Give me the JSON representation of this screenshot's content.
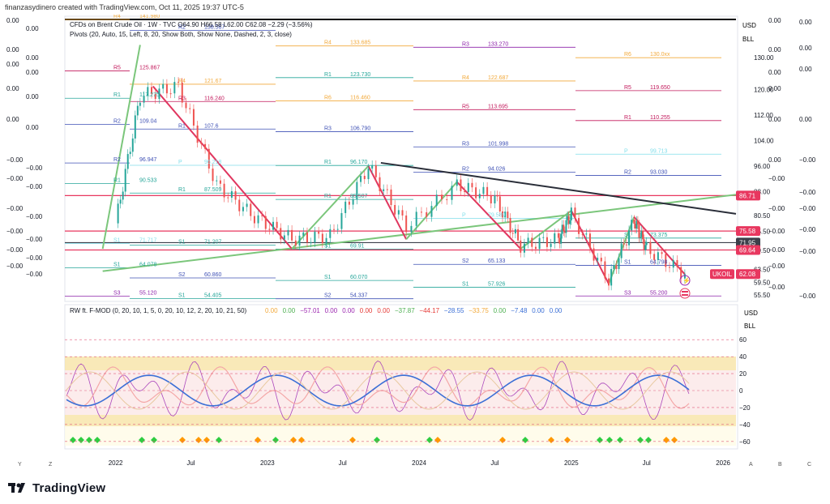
{
  "header": {
    "creator_text": "finanzasydinero created with TradingView.com, Oct 11, 2025 19:37 UTC-5"
  },
  "main_legend": {
    "line1": "CFDs on Brent Crude Oil · 1W · TVC  O64.90  H66.58  L62.00  C62.08  −2.29 (−3.56%)",
    "line2": "Pivots (20, Auto, 15, Left, 8, 20, Show Both, Show None, Dashed, 2, 3, close)"
  },
  "osc_legend": {
    "title": "RW ft. F-MOD (0, 20, 10, 1, 5, 0, 20, 10, 12, 2, 20, 10, 21, 50)",
    "values": [
      "0.00",
      "0.00",
      "−57.01",
      "0.00",
      "0.00",
      "0.00",
      "0.00",
      "−37.87",
      "−44.17",
      "−28.55",
      "−33.75",
      "0.00",
      "−7.48",
      "0.00",
      "0.00"
    ]
  },
  "price_axis": {
    "currency": "USD",
    "unit": "BLL",
    "ticks": [
      "130.00",
      "120.00",
      "112.00",
      "104.00",
      "96.00",
      "88.00",
      "80.50",
      "75.50",
      "69.50",
      "63.50",
      "59.50",
      "55.50"
    ]
  },
  "osc_axis": {
    "currency": "USD",
    "unit": "BLL",
    "ticks": [
      "60",
      "40",
      "20",
      "0",
      "−20",
      "−40",
      "−60"
    ]
  },
  "price_badges": [
    {
      "label": "86.71",
      "color": "#e8375f"
    },
    {
      "label": "75.58",
      "color": "#e8375f"
    },
    {
      "label": "71.95",
      "color": "#3c3f4a"
    },
    {
      "label": "69.64",
      "color": "#e8375f"
    },
    {
      "label": "UKOIL",
      "color": "#e8375f"
    },
    {
      "label": "62.08",
      "color": "#e8375f"
    }
  ],
  "left_scale_a": [
    "0.00",
    "0.00",
    "0.00",
    "0.00",
    "0.00",
    "−0.00",
    "−0.00",
    "−0.00",
    "−0.00",
    "−0.00",
    "−0.00"
  ],
  "left_scale_b": [
    "0.00",
    "0.00",
    "0.00",
    "0.00",
    "0.00",
    "−0.00",
    "−0.00",
    "−0.00",
    "−0.00",
    "−0.00",
    "−0.00"
  ],
  "right_scale": [
    "0.00",
    "0.00",
    "0.00",
    "0.00",
    "0.00",
    "0.00",
    "−0.00",
    "−0.00",
    "−0.00",
    "−0.00",
    "−0.00",
    "−0.00"
  ],
  "right_scale2": [
    "0.00",
    "0.00",
    "0.00",
    "0.00",
    "−0.00",
    "−0.00",
    "−0.00",
    "−0.00",
    "−0.00",
    "−0.00"
  ],
  "pivot_labels": [
    {
      "t": "R4",
      "v": "141.980",
      "c": "#f2a93b"
    },
    {
      "t": "R2",
      "v": "138.567",
      "c": "#3f51b5"
    },
    {
      "t": "R4",
      "v": "133.685",
      "c": "#f2a93b"
    },
    {
      "t": "R3",
      "v": "133.270",
      "c": "#8e24aa"
    },
    {
      "t": "R6",
      "v": "130.0xx",
      "c": "#f2a93b"
    },
    {
      "t": "R5",
      "v": "125.867",
      "c": "#c2185b"
    },
    {
      "t": "R4",
      "v": "121.67",
      "c": "#f2a93b"
    },
    {
      "t": "R1",
      "v": "123.730",
      "c": "#26a69a"
    },
    {
      "t": "R4",
      "v": "122.687",
      "c": "#f2a93b"
    },
    {
      "t": "R5",
      "v": "119.650",
      "c": "#c2185b"
    },
    {
      "t": "R1",
      "v": "117.275",
      "c": "#26a69a"
    },
    {
      "t": "R3",
      "v": "116.240",
      "c": "#c2185b"
    },
    {
      "t": "R6",
      "v": "116.460",
      "c": "#f2a93b"
    },
    {
      "t": "R5",
      "v": "113.695",
      "c": "#c2185b"
    },
    {
      "t": "R1",
      "v": "110.255",
      "c": "#c2185b"
    },
    {
      "t": "R2",
      "v": "109.04",
      "c": "#3f51b5"
    },
    {
      "t": "R1",
      "v": "107.6",
      "c": "#3f51b5"
    },
    {
      "t": "R3",
      "v": "106.790",
      "c": "#3f51b5"
    },
    {
      "t": "R3",
      "v": "101.998",
      "c": "#3f51b5"
    },
    {
      "t": "P",
      "v": "99.713",
      "c": "#80deea"
    },
    {
      "t": "R2",
      "v": "96.947",
      "c": "#3f51b5"
    },
    {
      "t": "P",
      "v": "96.218",
      "c": "#80deea"
    },
    {
      "t": "R1",
      "v": "96.170",
      "c": "#26a69a"
    },
    {
      "t": "R2",
      "v": "94.026",
      "c": "#3f51b5"
    },
    {
      "t": "R2",
      "v": "93.030",
      "c": "#3f51b5"
    },
    {
      "t": "R1",
      "v": "90.533",
      "c": "#26a69a"
    },
    {
      "t": "R1",
      "v": "87.509",
      "c": "#26a69a"
    },
    {
      "t": "R1",
      "v": "85.507",
      "c": "#26a69a"
    },
    {
      "t": "P",
      "v": "79.589",
      "c": "#80deea"
    },
    {
      "t": "S1",
      "v": "73.375",
      "c": "#26a69a"
    },
    {
      "t": "S1",
      "v": "71.717",
      "c": "#80deea"
    },
    {
      "t": "S1",
      "v": "71.207",
      "c": "#26a69a"
    },
    {
      "t": "S1",
      "v": "69.91",
      "c": "#26a69a"
    },
    {
      "t": "S2",
      "v": "65.133",
      "c": "#3f51b5"
    },
    {
      "t": "S1",
      "v": "64.798",
      "c": "#3f51b5"
    },
    {
      "t": "S1",
      "v": "64.078",
      "c": "#26a69a"
    },
    {
      "t": "S2",
      "v": "60.860",
      "c": "#3f51b5"
    },
    {
      "t": "S1",
      "v": "60.070",
      "c": "#26a69a"
    },
    {
      "t": "S1",
      "v": "57.926",
      "c": "#26a69a"
    },
    {
      "t": "S3",
      "v": "55.200",
      "c": "#8e24aa"
    },
    {
      "t": "S3",
      "v": "55.120",
      "c": "#8e24aa"
    },
    {
      "t": "S1",
      "v": "54.405",
      "c": "#26a69a"
    },
    {
      "t": "S2",
      "v": "54.337",
      "c": "#3f51b5"
    }
  ],
  "time_axis": [
    "2022",
    "Jul",
    "2023",
    "Jul",
    "2024",
    "Jul",
    "2025",
    "Jul",
    "2026"
  ],
  "corner_buttons": {
    "left_y": "Y",
    "left_z": "Z",
    "right_a": "A",
    "right_b": "B",
    "right_c": "C"
  },
  "footer": {
    "brand": "TradingView"
  },
  "chart_data": {
    "type": "line",
    "title": "CFDs on Brent Crude Oil · 1W · TVC",
    "symbol": "UKOIL",
    "ohlc_last": {
      "open": 64.9,
      "high": 66.58,
      "low": 62.0,
      "close": 62.08,
      "change": -2.29,
      "change_pct": -3.56
    },
    "x": [
      "2022-01",
      "2022-03",
      "2022-06",
      "2022-09",
      "2022-12",
      "2023-03",
      "2023-06",
      "2023-09",
      "2023-12",
      "2024-04",
      "2024-07",
      "2024-09",
      "2024-12",
      "2025-01",
      "2025-04",
      "2025-06",
      "2025-07",
      "2025-10"
    ],
    "series": [
      {
        "name": "UKOIL",
        "values": [
          78,
          118,
          121,
          90,
          80,
          73,
          74,
          96,
          77,
          90,
          86,
          71,
          73,
          81,
          60,
          79,
          70,
          62.08
        ]
      }
    ],
    "ylim": [
      54,
      142
    ],
    "horizontal_levels": [
      86.71,
      75.58,
      71.95,
      69.64
    ],
    "oscillator": {
      "name": "RW ft. F-MOD",
      "ylim": [
        -65,
        65
      ],
      "bands": [
        [
          -40,
          -25
        ],
        [
          25,
          40
        ]
      ]
    }
  }
}
